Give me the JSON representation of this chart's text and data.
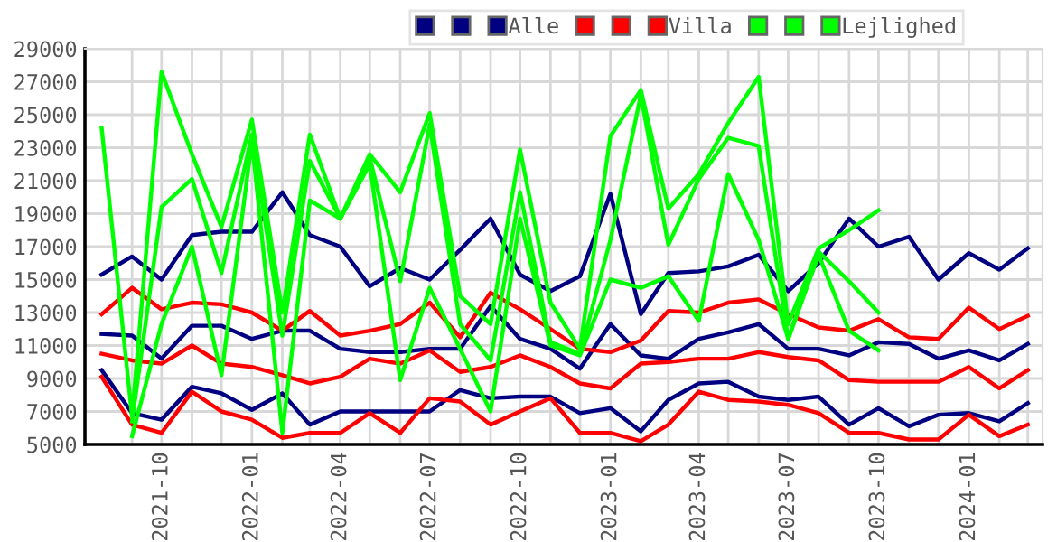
{
  "chart_data": {
    "type": "line",
    "x": [
      "2021-08",
      "2021-09",
      "2021-10",
      "2021-11",
      "2021-12",
      "2022-01",
      "2022-02",
      "2022-03",
      "2022-04",
      "2022-05",
      "2022-06",
      "2022-07",
      "2022-08",
      "2022-09",
      "2022-10",
      "2022-11",
      "2022-12",
      "2023-01",
      "2023-02",
      "2023-03",
      "2023-04",
      "2023-05",
      "2023-06",
      "2023-07",
      "2023-08",
      "2023-09",
      "2023-10",
      "2023-11",
      "2023-12",
      "2024-01",
      "2024-02",
      "2024-03"
    ],
    "series": [
      {
        "color": "#000080",
        "values": [
          15300,
          16400,
          15000,
          17700,
          17900,
          17900,
          20300,
          17700,
          17000,
          14600,
          15700,
          15000,
          16800,
          18700,
          15300,
          14300,
          15200,
          20200,
          12900,
          15400,
          15500,
          15800,
          16500,
          14300,
          16000,
          18700,
          17000,
          17600,
          15000,
          16600,
          15600,
          16900
        ]
      },
      {
        "color": "#000080",
        "values": [
          11700,
          11600,
          10200,
          12200,
          12200,
          11400,
          11900,
          11900,
          10800,
          10600,
          10600,
          10800,
          10800,
          13400,
          11400,
          10800,
          9600,
          12300,
          10400,
          10200,
          11400,
          11800,
          12300,
          10800,
          10800,
          10400,
          11200,
          11100,
          10200,
          10700,
          10100,
          11100
        ]
      },
      {
        "name": "Alle",
        "color": "#000080",
        "values": [
          9500,
          6900,
          6500,
          8500,
          8100,
          7100,
          8100,
          6200,
          7000,
          7000,
          7000,
          7000,
          8300,
          7800,
          7900,
          7900,
          6900,
          7200,
          5800,
          7700,
          8700,
          8800,
          7900,
          7700,
          7900,
          6200,
          7200,
          6100,
          6800,
          6900,
          6400,
          7500
        ]
      },
      {
        "color": "#ff0000",
        "values": [
          12900,
          14500,
          13200,
          13600,
          13500,
          13000,
          11900,
          13100,
          11600,
          11900,
          12300,
          13600,
          11500,
          14200,
          13200,
          12000,
          10800,
          10600,
          11300,
          13100,
          13000,
          13600,
          13800,
          12900,
          12100,
          11900,
          12600,
          11500,
          11400,
          13300,
          12000,
          12800
        ]
      },
      {
        "color": "#ff0000",
        "values": [
          10500,
          10100,
          9900,
          11000,
          9900,
          9700,
          9200,
          8700,
          9100,
          10200,
          9900,
          10700,
          9400,
          9700,
          10400,
          9700,
          8700,
          8400,
          9900,
          10000,
          10200,
          10200,
          10600,
          10300,
          10100,
          8900,
          8800,
          8800,
          8800,
          9700,
          8400,
          9500
        ]
      },
      {
        "name": "Villa",
        "color": "#ff0000",
        "values": [
          9100,
          6200,
          5700,
          8200,
          7000,
          6500,
          5400,
          5700,
          5700,
          6900,
          5700,
          7800,
          7600,
          6200,
          7000,
          7800,
          5700,
          5700,
          5200,
          6200,
          8200,
          7700,
          7600,
          7400,
          6900,
          5700,
          5700,
          5300,
          5300,
          6800,
          5500,
          6200
        ]
      },
      {
        "color": "#00ff00",
        "values": [
          24200,
          6700,
          27600,
          22600,
          18200,
          24700,
          13000,
          23800,
          18700,
          22600,
          20300,
          25100,
          14000,
          12300,
          22900,
          13600,
          10800,
          23700,
          26500,
          19300,
          21400,
          24500,
          27300,
          12300,
          16900,
          18000,
          19200,
          null,
          null,
          null,
          null,
          null
        ]
      },
      {
        "color": "#00ff00",
        "values": [
          null,
          6400,
          19400,
          21100,
          15400,
          23800,
          11600,
          22200,
          18700,
          22400,
          14900,
          24400,
          12300,
          10100,
          20300,
          11200,
          10500,
          17400,
          26200,
          17100,
          21100,
          23600,
          23100,
          11400,
          16700,
          14900,
          13000,
          null,
          null,
          null,
          null,
          null
        ]
      },
      {
        "name": "Lejlighed",
        "color": "#00ff00",
        "values": [
          null,
          5500,
          12300,
          17000,
          9200,
          23400,
          5700,
          19800,
          18700,
          22000,
          8900,
          14500,
          10800,
          7000,
          18700,
          11000,
          10400,
          15000,
          14500,
          15200,
          12500,
          21400,
          17400,
          11400,
          16500,
          11900,
          10700,
          null,
          null,
          null,
          null,
          null
        ]
      }
    ],
    "xlim": [
      "2021-07-15",
      "2024-03-16"
    ],
    "xticks": [
      {
        "value": "2021-09",
        "label": null
      },
      {
        "value": "2021-10",
        "label": "2021-10"
      },
      {
        "value": "2021-11",
        "label": null
      },
      {
        "value": "2021-12",
        "label": null
      },
      {
        "value": "2022-01",
        "label": "2022-01"
      },
      {
        "value": "2022-02",
        "label": null
      },
      {
        "value": "2022-03",
        "label": null
      },
      {
        "value": "2022-04",
        "label": "2022-04"
      },
      {
        "value": "2022-05",
        "label": null
      },
      {
        "value": "2022-06",
        "label": null
      },
      {
        "value": "2022-07",
        "label": "2022-07"
      },
      {
        "value": "2022-08",
        "label": null
      },
      {
        "value": "2022-09",
        "label": null
      },
      {
        "value": "2022-10",
        "label": "2022-10"
      },
      {
        "value": "2022-11",
        "label": null
      },
      {
        "value": "2022-12",
        "label": null
      },
      {
        "value": "2023-01",
        "label": "2023-01"
      },
      {
        "value": "2023-02",
        "label": null
      },
      {
        "value": "2023-03",
        "label": null
      },
      {
        "value": "2023-04",
        "label": "2023-04"
      },
      {
        "value": "2023-05",
        "label": null
      },
      {
        "value": "2023-06",
        "label": null
      },
      {
        "value": "2023-07",
        "label": "2023-07"
      },
      {
        "value": "2023-08",
        "label": null
      },
      {
        "value": "2023-09",
        "label": null
      },
      {
        "value": "2023-10",
        "label": "2023-10"
      },
      {
        "value": "2023-11",
        "label": null
      },
      {
        "value": "2023-12",
        "label": null
      },
      {
        "value": "2024-01",
        "label": "2024-01"
      },
      {
        "value": "2024-02",
        "label": null
      },
      {
        "value": "2024-03",
        "label": null
      }
    ],
    "ylim": [
      5000,
      29000
    ],
    "yticks": [
      5000,
      7000,
      9000,
      11000,
      13000,
      15000,
      17000,
      19000,
      21000,
      23000,
      25000,
      27000,
      29000
    ],
    "grid": true,
    "legend": "top right",
    "marker": "none",
    "line_style": "solid"
  }
}
